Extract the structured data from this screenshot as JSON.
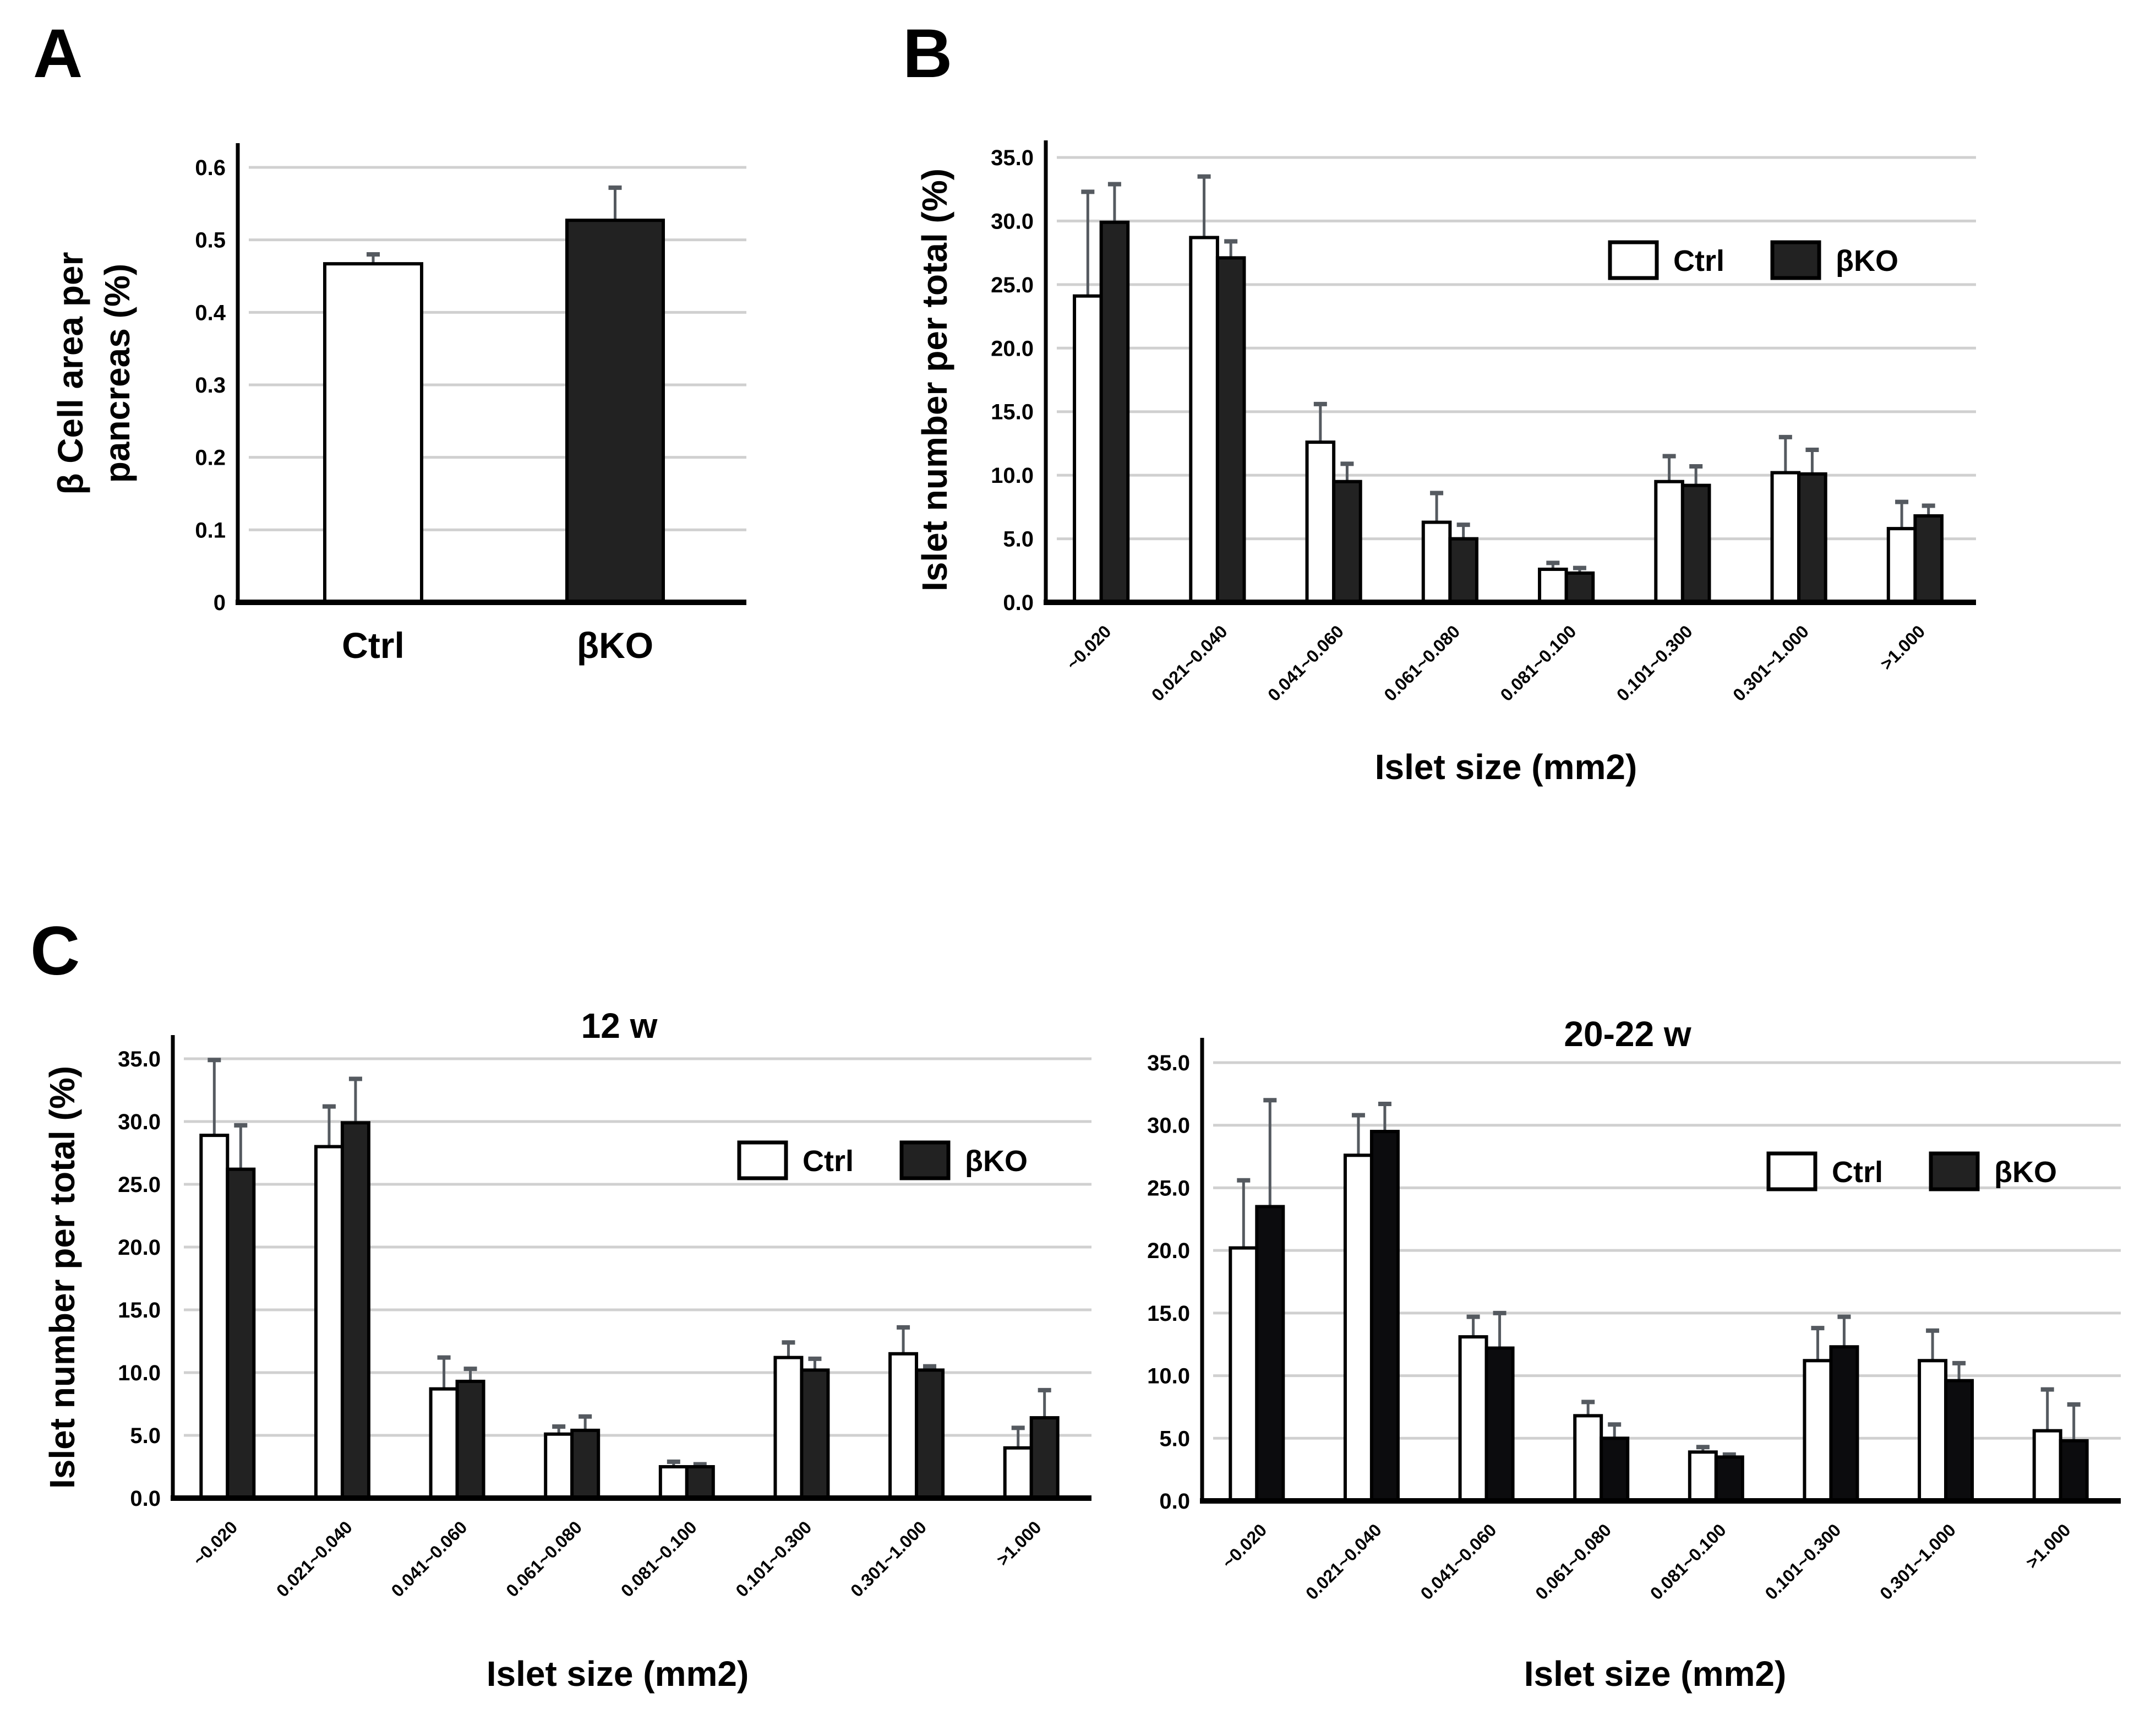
{
  "colors": {
    "ctrl": "#ffffff",
    "bko": "#222222",
    "bko_dark": "#0c0c0e",
    "grid": "#d0d0d0",
    "error": "#555a60"
  },
  "chart_data": [
    {
      "panel": "A",
      "type": "bar",
      "title": "",
      "ylabel_lines": [
        "β Cell area per",
        "pancreas  (%)"
      ],
      "xlabel": "",
      "categories": [
        "Ctrl",
        "βKO"
      ],
      "values": [
        0.467,
        0.527
      ],
      "error_upper": [
        0.48,
        0.572
      ],
      "ylim": [
        0,
        0.6
      ],
      "yticks": [
        "0",
        "0.1",
        "0.2",
        "0.3",
        "0.4",
        "0.5",
        "0.6"
      ],
      "grid": true
    },
    {
      "panel": "B",
      "type": "bar",
      "title": "",
      "ylabel": "Islet number per total (%)",
      "xlabel": "Islet size (mm2)",
      "categories": [
        "~0.020",
        "0.021~0.040",
        "0.041~0.060",
        "0.061~0.080",
        "0.081~0.100",
        "0.101~0.300",
        "0.301~1.000",
        ">1.000"
      ],
      "ylim": [
        0,
        35
      ],
      "yticks": [
        "0.0",
        "5.0",
        "10.0",
        "15.0",
        "20.0",
        "25.0",
        "30.0",
        "35.0"
      ],
      "legend": [
        "Ctrl",
        "βKO"
      ],
      "legend_position": "top-right",
      "series": [
        {
          "name": "Ctrl",
          "values": [
            24.1,
            28.7,
            12.6,
            6.3,
            2.6,
            9.5,
            10.2,
            5.8
          ],
          "error_upper": [
            32.3,
            33.5,
            15.6,
            8.6,
            3.1,
            11.5,
            13.0,
            7.9
          ]
        },
        {
          "name": "βKO",
          "values": [
            29.9,
            27.1,
            9.5,
            5.0,
            2.3,
            9.2,
            10.1,
            6.8
          ],
          "error_upper": [
            32.9,
            28.4,
            10.9,
            6.1,
            2.7,
            10.7,
            12.0,
            7.6
          ]
        }
      ]
    },
    {
      "panel": "C",
      "type": "bar",
      "title": "12 w",
      "ylabel": "Islet number per total (%)",
      "xlabel": "Islet size (mm2)",
      "categories": [
        "~0.020",
        "0.021~0.040",
        "0.041~0.060",
        "0.061~0.080",
        "0.081~0.100",
        "0.101~0.300",
        "0.301~1.000",
        ">1.000"
      ],
      "ylim": [
        0,
        35
      ],
      "yticks": [
        "0.0",
        "5.0",
        "10.0",
        "15.0",
        "20.0",
        "25.0",
        "30.0",
        "35.0"
      ],
      "legend": [
        "Ctrl",
        "βKO"
      ],
      "legend_position": "top-right",
      "series": [
        {
          "name": "Ctrl",
          "values": [
            28.9,
            28.0,
            8.7,
            5.1,
            2.5,
            11.2,
            11.5,
            4.0
          ],
          "error_upper": [
            34.9,
            31.2,
            11.2,
            5.7,
            2.9,
            12.4,
            13.6,
            5.6
          ]
        },
        {
          "name": "βKO",
          "values": [
            26.2,
            29.9,
            9.3,
            5.4,
            2.5,
            10.2,
            10.2,
            6.4
          ],
          "error_upper": [
            29.7,
            33.4,
            10.3,
            6.5,
            2.7,
            11.1,
            10.5,
            8.6
          ]
        }
      ]
    },
    {
      "panel": "",
      "type": "bar",
      "title": "20-22 w",
      "ylabel": "",
      "xlabel": "Islet size (mm2)",
      "categories": [
        "~0.020",
        "0.021~0.040",
        "0.041~0.060",
        "0.061~0.080",
        "0.081~0.100",
        "0.101~0.300",
        "0.301~1.000",
        ">1.000"
      ],
      "ylim": [
        0,
        35
      ],
      "yticks": [
        "0.0",
        "5.0",
        "10.0",
        "15.0",
        "20.0",
        "25.0",
        "30.0",
        "35.0"
      ],
      "legend": [
        "Ctrl",
        "βKO"
      ],
      "legend_position": "top-right",
      "series": [
        {
          "name": "Ctrl",
          "values": [
            20.2,
            27.6,
            13.1,
            6.8,
            3.9,
            11.2,
            11.2,
            5.6
          ],
          "error_upper": [
            25.6,
            30.8,
            14.7,
            7.9,
            4.3,
            13.8,
            13.6,
            8.9
          ]
        },
        {
          "name": "βKO",
          "values": [
            23.5,
            29.5,
            12.2,
            5.0,
            3.5,
            12.3,
            9.6,
            4.8
          ],
          "error_upper": [
            32.0,
            31.7,
            15.0,
            6.1,
            3.7,
            14.7,
            11.0,
            7.7
          ]
        }
      ]
    }
  ]
}
